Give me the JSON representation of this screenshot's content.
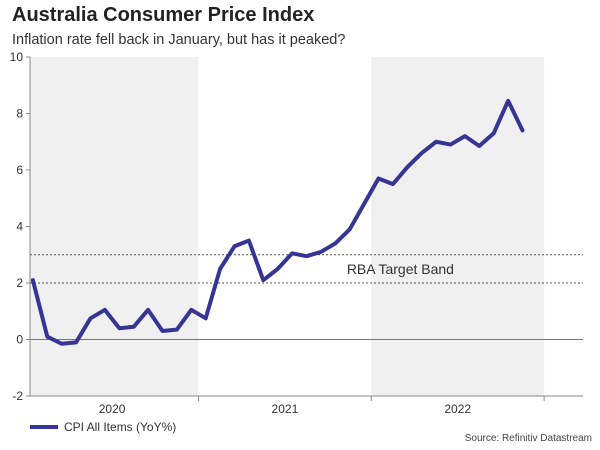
{
  "chart_data": {
    "type": "line",
    "title": "Australia Consumer Price Index",
    "subtitle": "Inflation rate fell back in January, but has it peaked?",
    "ylim": [
      -2,
      10
    ],
    "yticks": [
      -2,
      0,
      2,
      4,
      6,
      8,
      10
    ],
    "xlim": [
      -0.2,
      38.2
    ],
    "year_labels": [
      {
        "label": "2020",
        "x": 5.5
      },
      {
        "label": "2021",
        "x": 17.5
      },
      {
        "label": "2022",
        "x": 29.5
      }
    ],
    "year_boundaries": [
      11.5,
      23.5
    ],
    "shaded_ranges": [
      [
        -0.5,
        11.5
      ],
      [
        23.5,
        35.5
      ]
    ],
    "x_minor_ticks": [
      -0.5,
      11.5,
      23.5,
      35.5
    ],
    "grid": false,
    "reference_lines": [
      {
        "value": 3,
        "style": "dotted"
      },
      {
        "value": 2,
        "style": "dotted"
      },
      {
        "value": 0,
        "style": "solid"
      }
    ],
    "annotation": {
      "text": "RBA Target Band",
      "x": 21.8,
      "y": 2.5
    },
    "series": [
      {
        "name": "CPI All Items (YoY%)",
        "color": "#363494",
        "values": [
          2.1,
          0.1,
          -0.15,
          -0.1,
          0.75,
          1.05,
          0.4,
          0.45,
          1.05,
          0.3,
          0.35,
          1.05,
          0.75,
          2.5,
          3.3,
          3.5,
          2.1,
          2.5,
          3.05,
          2.95,
          3.1,
          3.4,
          3.9,
          4.8,
          5.7,
          5.5,
          6.1,
          6.6,
          7.0,
          6.9,
          7.2,
          6.85,
          7.3,
          8.45,
          7.4
        ]
      }
    ],
    "legend_position": "bottom-left",
    "source": "Source: Refinitiv Datastream"
  }
}
